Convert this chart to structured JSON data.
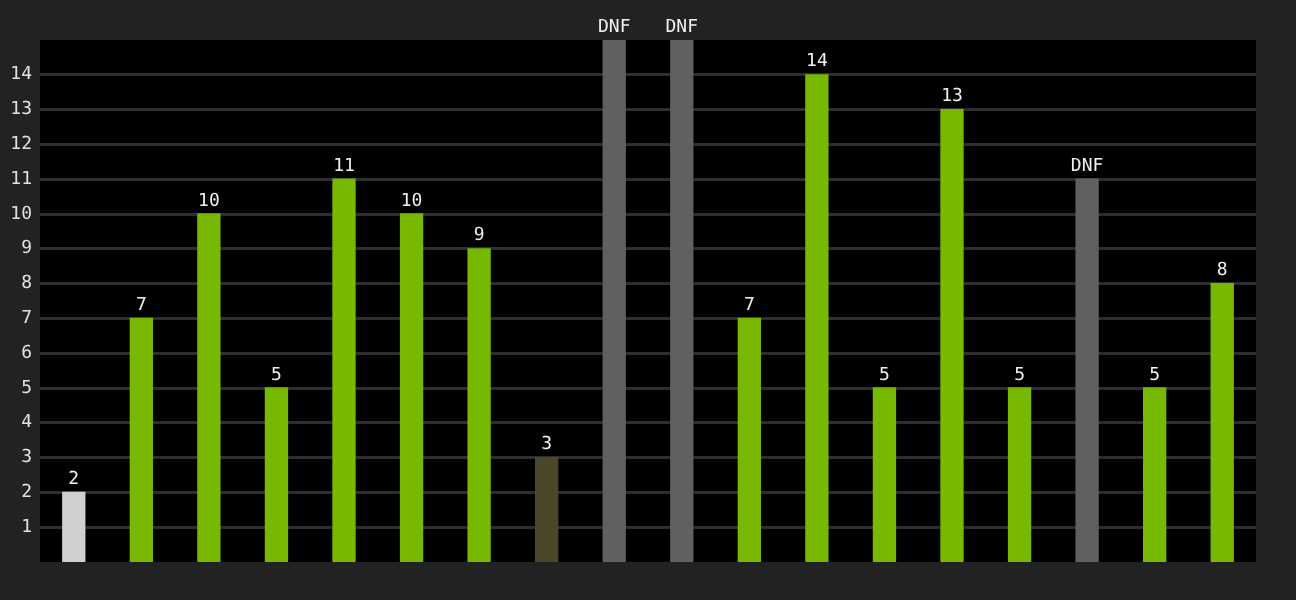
{
  "chart_data": {
    "type": "bar",
    "categories": [
      null,
      null,
      null,
      null,
      null,
      null,
      null,
      null,
      null,
      null,
      null,
      null,
      null,
      null,
      null,
      null,
      null,
      null
    ],
    "values": [
      2,
      7,
      10,
      5,
      11,
      10,
      9,
      3,
      15,
      15,
      7,
      14,
      5,
      13,
      5,
      11,
      5,
      8
    ],
    "colors": [
      "#d0d0d0",
      "#76b900",
      "#76b900",
      "#76b900",
      "#76b900",
      "#76b900",
      "#76b900",
      "#4a4828",
      "#606060",
      "#606060",
      "#76b900",
      "#76b900",
      "#76b900",
      "#76b900",
      "#76b900",
      "#606060",
      "#76b900",
      "#76b900"
    ],
    "value_labels": [
      "2",
      "7",
      "10",
      "5",
      "11",
      "10",
      "9",
      "3",
      "DNF",
      "DNF",
      "7",
      "14",
      "5",
      "13",
      "5",
      "DNF",
      "5",
      "8"
    ],
    "ylim": [
      0,
      15
    ],
    "yticks": [
      1,
      2,
      3,
      4,
      5,
      6,
      7,
      8,
      9,
      10,
      11,
      12,
      13,
      14
    ],
    "grid": "y",
    "tick_labels": "y"
  }
}
